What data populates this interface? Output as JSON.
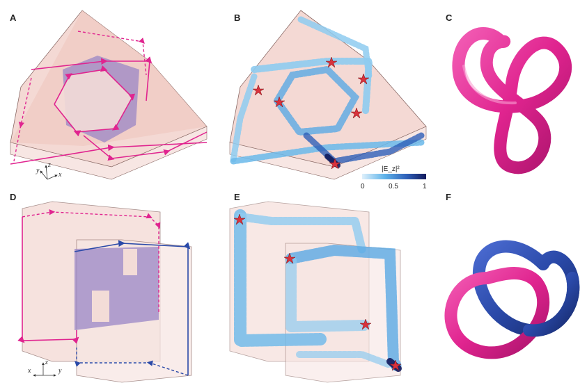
{
  "panels": {
    "A": "A",
    "B": "B",
    "C": "C",
    "D": "D",
    "E": "E",
    "F": "F"
  },
  "axes_top": {
    "y": "y",
    "z": "z",
    "x": "x"
  },
  "axes_bottom": {
    "x": "x",
    "z": "z",
    "y": "y"
  },
  "colorbar": {
    "title": "|E_z|²",
    "ticks": [
      "0",
      "0.5",
      "1"
    ]
  },
  "colors": {
    "magenta": "#e0248f",
    "blue": "#2a49a8",
    "slab_fill": "#f4d9d4",
    "field_light": "#8ecbf0",
    "field_dark": "#1a2a7a",
    "star": "#d8323c"
  }
}
